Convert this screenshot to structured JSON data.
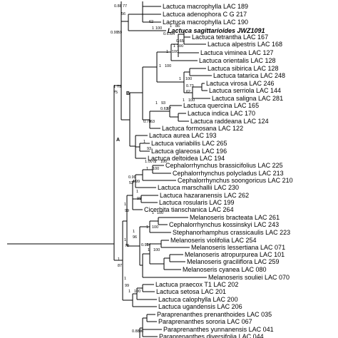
{
  "figure": {
    "colors": {
      "branch": "#000000",
      "text": "#000000",
      "highlight": "#e8202a"
    },
    "clade_labels": [
      "A",
      "B"
    ],
    "taxa": [
      "Lactuca macrophylla LAC 189",
      "Lactuca adenophora C G 217",
      "Lactuca macrophylla LAC 190",
      "Lactuca sagittarioides JWZ1091",
      "Lactuca tetrantha LAC 167",
      "Lactuca alpestris LAC 168",
      "Lactuca viminea LAC 127",
      "Lactuca orientalis LAC 128",
      "Lactuca sibirica LAC 128",
      "Lactuca tatarica LAC 248",
      "Lactuca virosa LAC 246",
      "Lactuca serriola LAC 144",
      "Lactuca saligna LAC 281",
      "Lactuca quercina LAC 165",
      "Lactuca indica LAC 170",
      "Lactuca raddeana LAC 124",
      "Lactuca formosana LAC 122",
      "Lactuca aurea LAC 193",
      "Lactuca variabilis LAC 265",
      "Lactuca glareosa LAC 196",
      "Lactuca deltoidea LAC 194",
      "Cephalorrhynchus brassicifolius LAC 225",
      "Cephalorrhynchus polycladus LAC 213",
      "Cephalorrhynchus soongoricus LAC 210",
      "Lactuca marschallii LAC 230",
      "Lactuca hazaranensis LAC 262",
      "Lactuca rosularis LAC 199",
      "Cicerbita tianschanica LAC 264",
      "Melanoseris bracteata LAC 261",
      "Cephalorrhynchus kossinskyi LAC 243",
      "Stephanorhamphus crassicaulis LAC 223",
      "Melanoseris violifolia LAC 254",
      "Melanoseris lessertiana LAC 071",
      "Melanoseris atropurpurea LAC 101",
      "Melanoseris graciliflora LAC 259",
      "Melanoseris cyanea LAC 080",
      "Melanoseris souliei LAC 070",
      "Lactuca praecox T1 LAC 202",
      "Lactuca setosa LAC 201",
      "Lactuca calophylla LAC 200",
      "Lactuca ugandensis LAC 206",
      "Paraprenanthes prenanthoides LAC 035",
      "Paraprenanthes sororia LAC 067",
      "Paraprenanthes yunnanensis LAC 041",
      "Paraprenanthes diversifolia LAC 044"
    ],
    "support_values": [
      "0.88",
      "77",
      "56",
      "62",
      "1",
      "100",
      "1",
      "86",
      "0.67",
      "84",
      "0.65",
      "1",
      "100",
      "1",
      "100",
      "0.99",
      "59",
      "1",
      "100",
      "1",
      "100",
      "0.73",
      "62",
      "1",
      "100",
      "1",
      "79",
      "75",
      "1",
      "93",
      "0.63",
      "67",
      "0.78",
      "63",
      "1",
      "93",
      "1.00",
      "77",
      "1",
      "100",
      "1",
      "100",
      "0.99",
      "53",
      "1",
      "99",
      "1",
      "99",
      "1",
      "99",
      "1",
      "100",
      "1",
      "100",
      "1",
      "96",
      "0.98",
      "74",
      "1",
      "100",
      "1",
      "78",
      "1",
      "87",
      "1",
      "99",
      "1",
      "100",
      "0.88",
      "96"
    ]
  }
}
